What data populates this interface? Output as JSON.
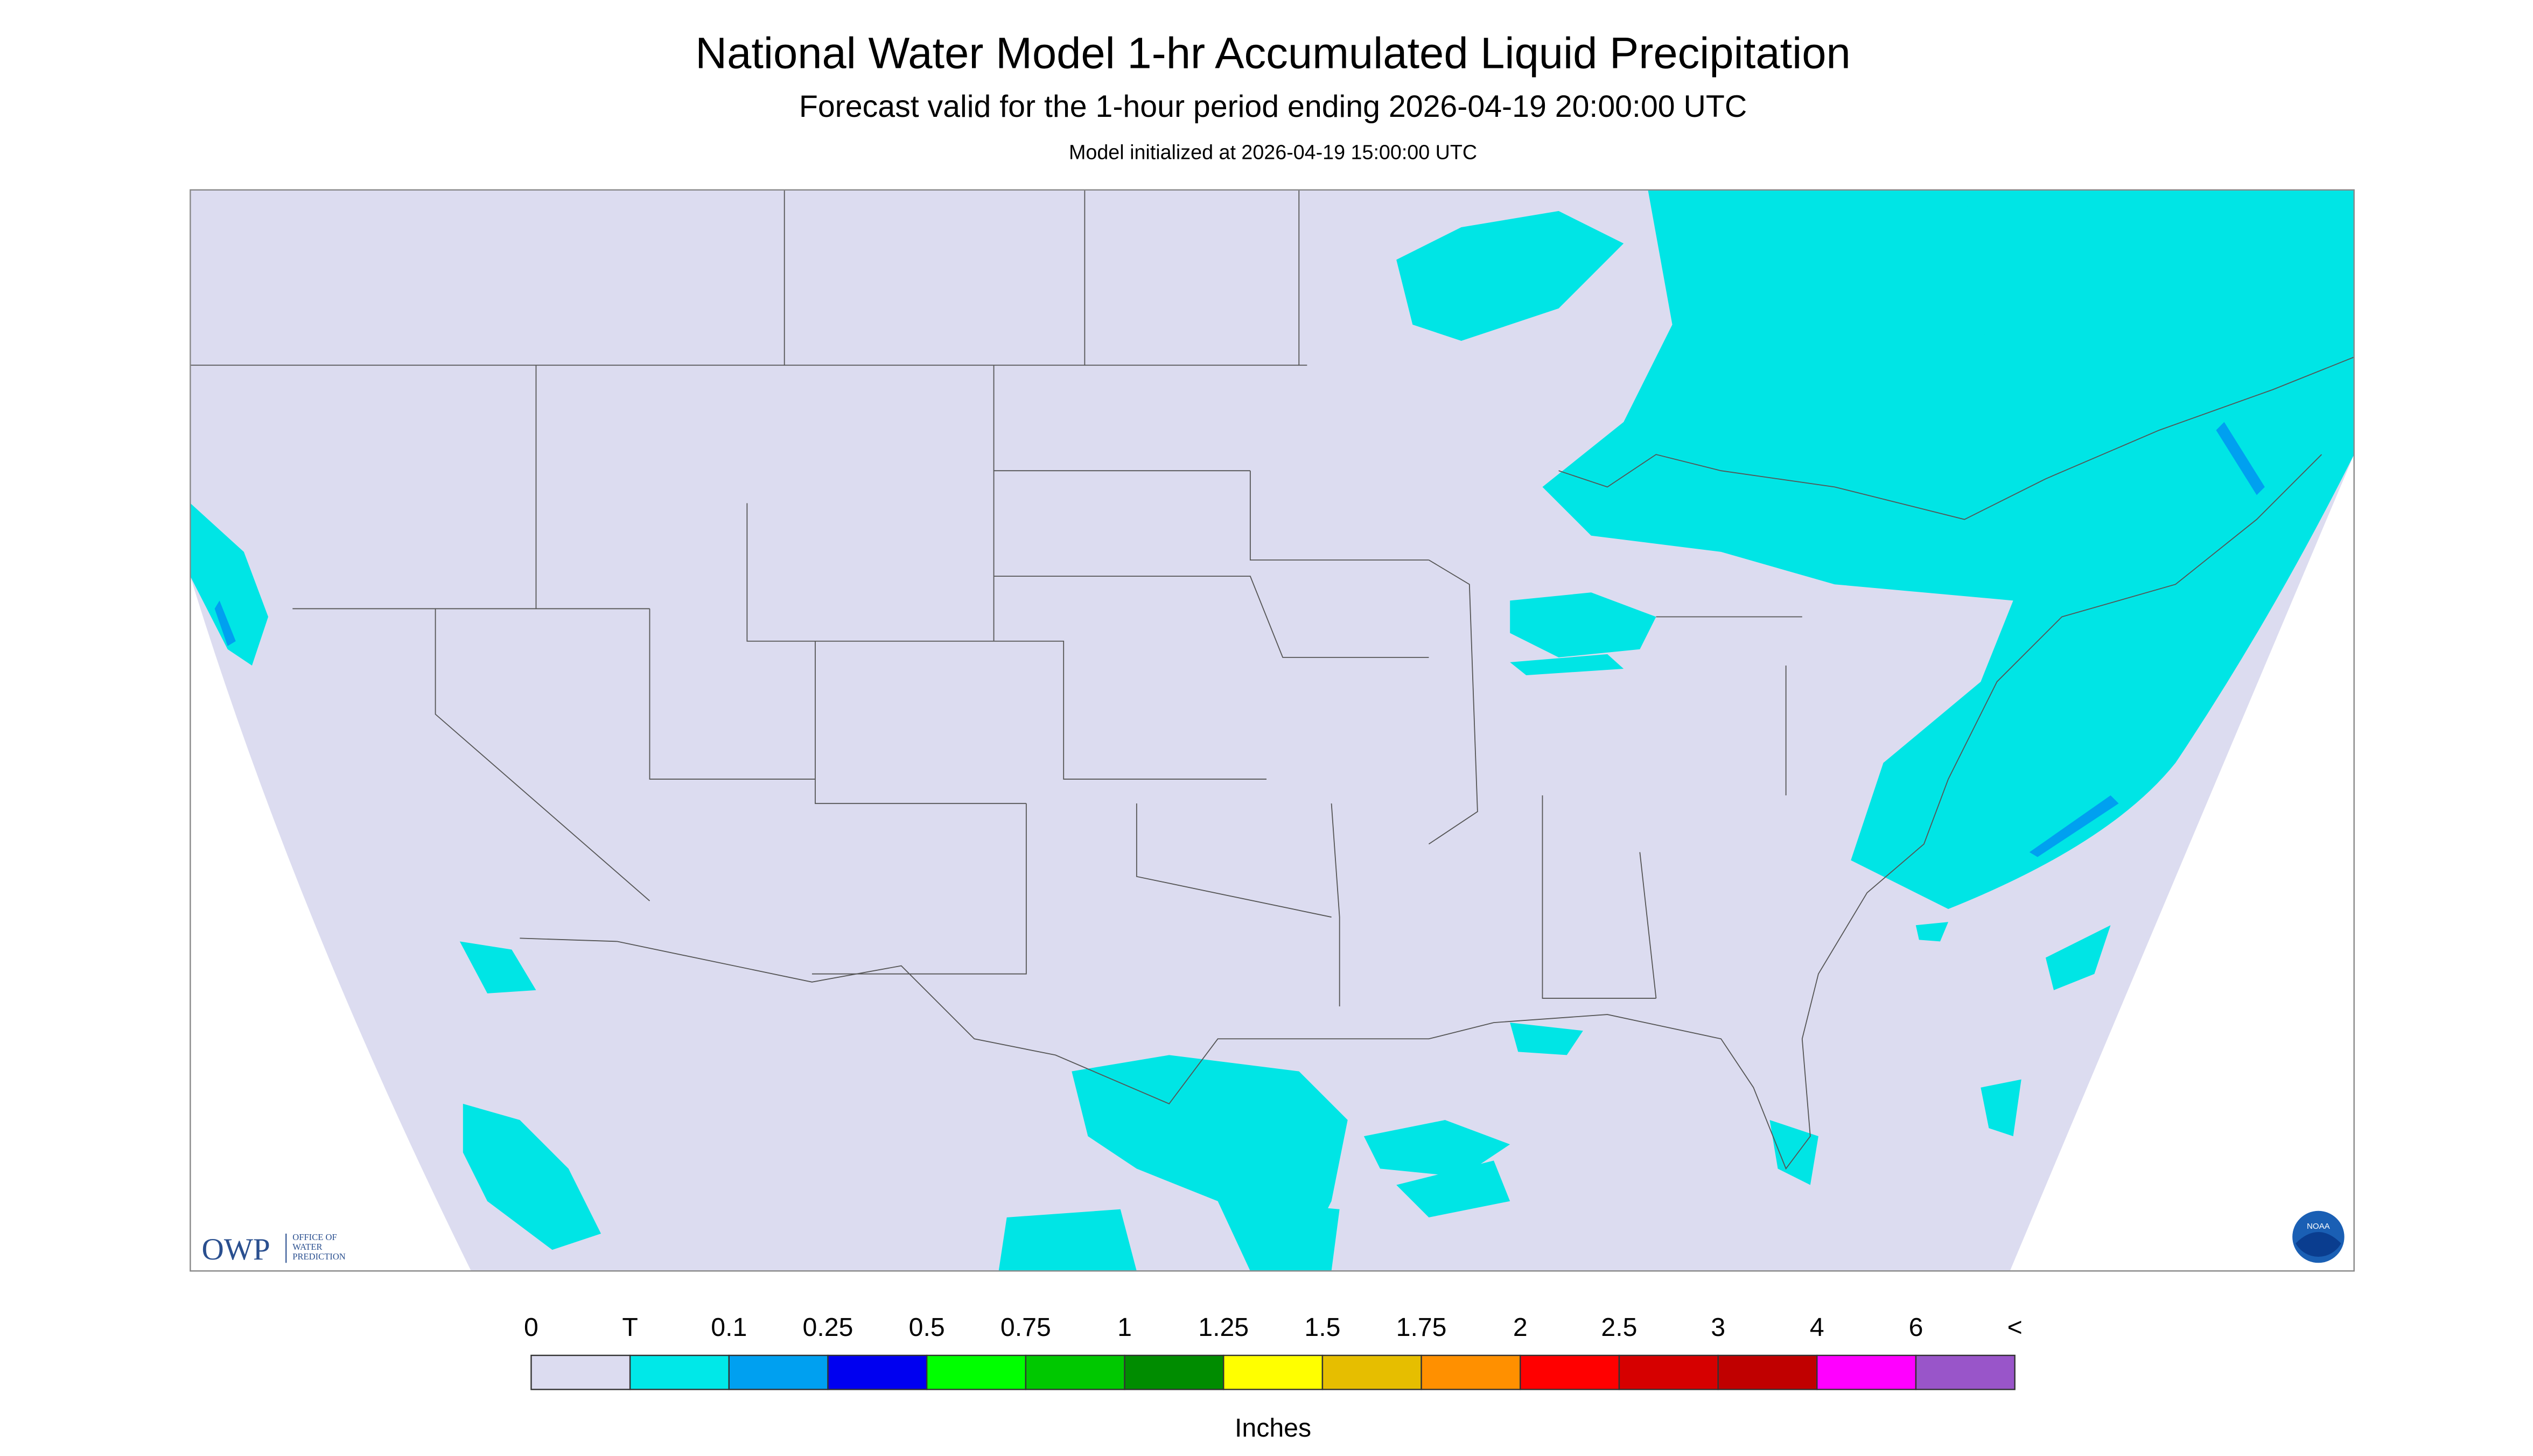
{
  "header": {
    "title": "National Water Model 1-hr Accumulated Liquid Precipitation",
    "subtitle": "Forecast valid for the 1-hour period ending 2026-04-19 20:00:00 UTC",
    "init": "Model initialized at 2026-04-19 15:00:00 UTC"
  },
  "legend": {
    "labels": [
      "0",
      "T",
      "0.1",
      "0.25",
      "0.5",
      "0.75",
      "1",
      "1.25",
      "1.5",
      "1.75",
      "2",
      "2.5",
      "3",
      "4",
      "6",
      "<"
    ],
    "colors": [
      "#dcdcf0",
      "#00e8e8",
      "#00a0f0",
      "#0000f0",
      "#00ff00",
      "#00c800",
      "#008c00",
      "#ffff00",
      "#e6be00",
      "#ff9000",
      "#ff0000",
      "#d60000",
      "#c00000",
      "#ff00ff",
      "#9955c9"
    ],
    "unit": "Inches"
  },
  "logos": {
    "owp": "OWP",
    "owp_name": [
      "OFFICE OF",
      "WATER",
      "PREDICTION"
    ],
    "noaa": "NOAA"
  }
}
